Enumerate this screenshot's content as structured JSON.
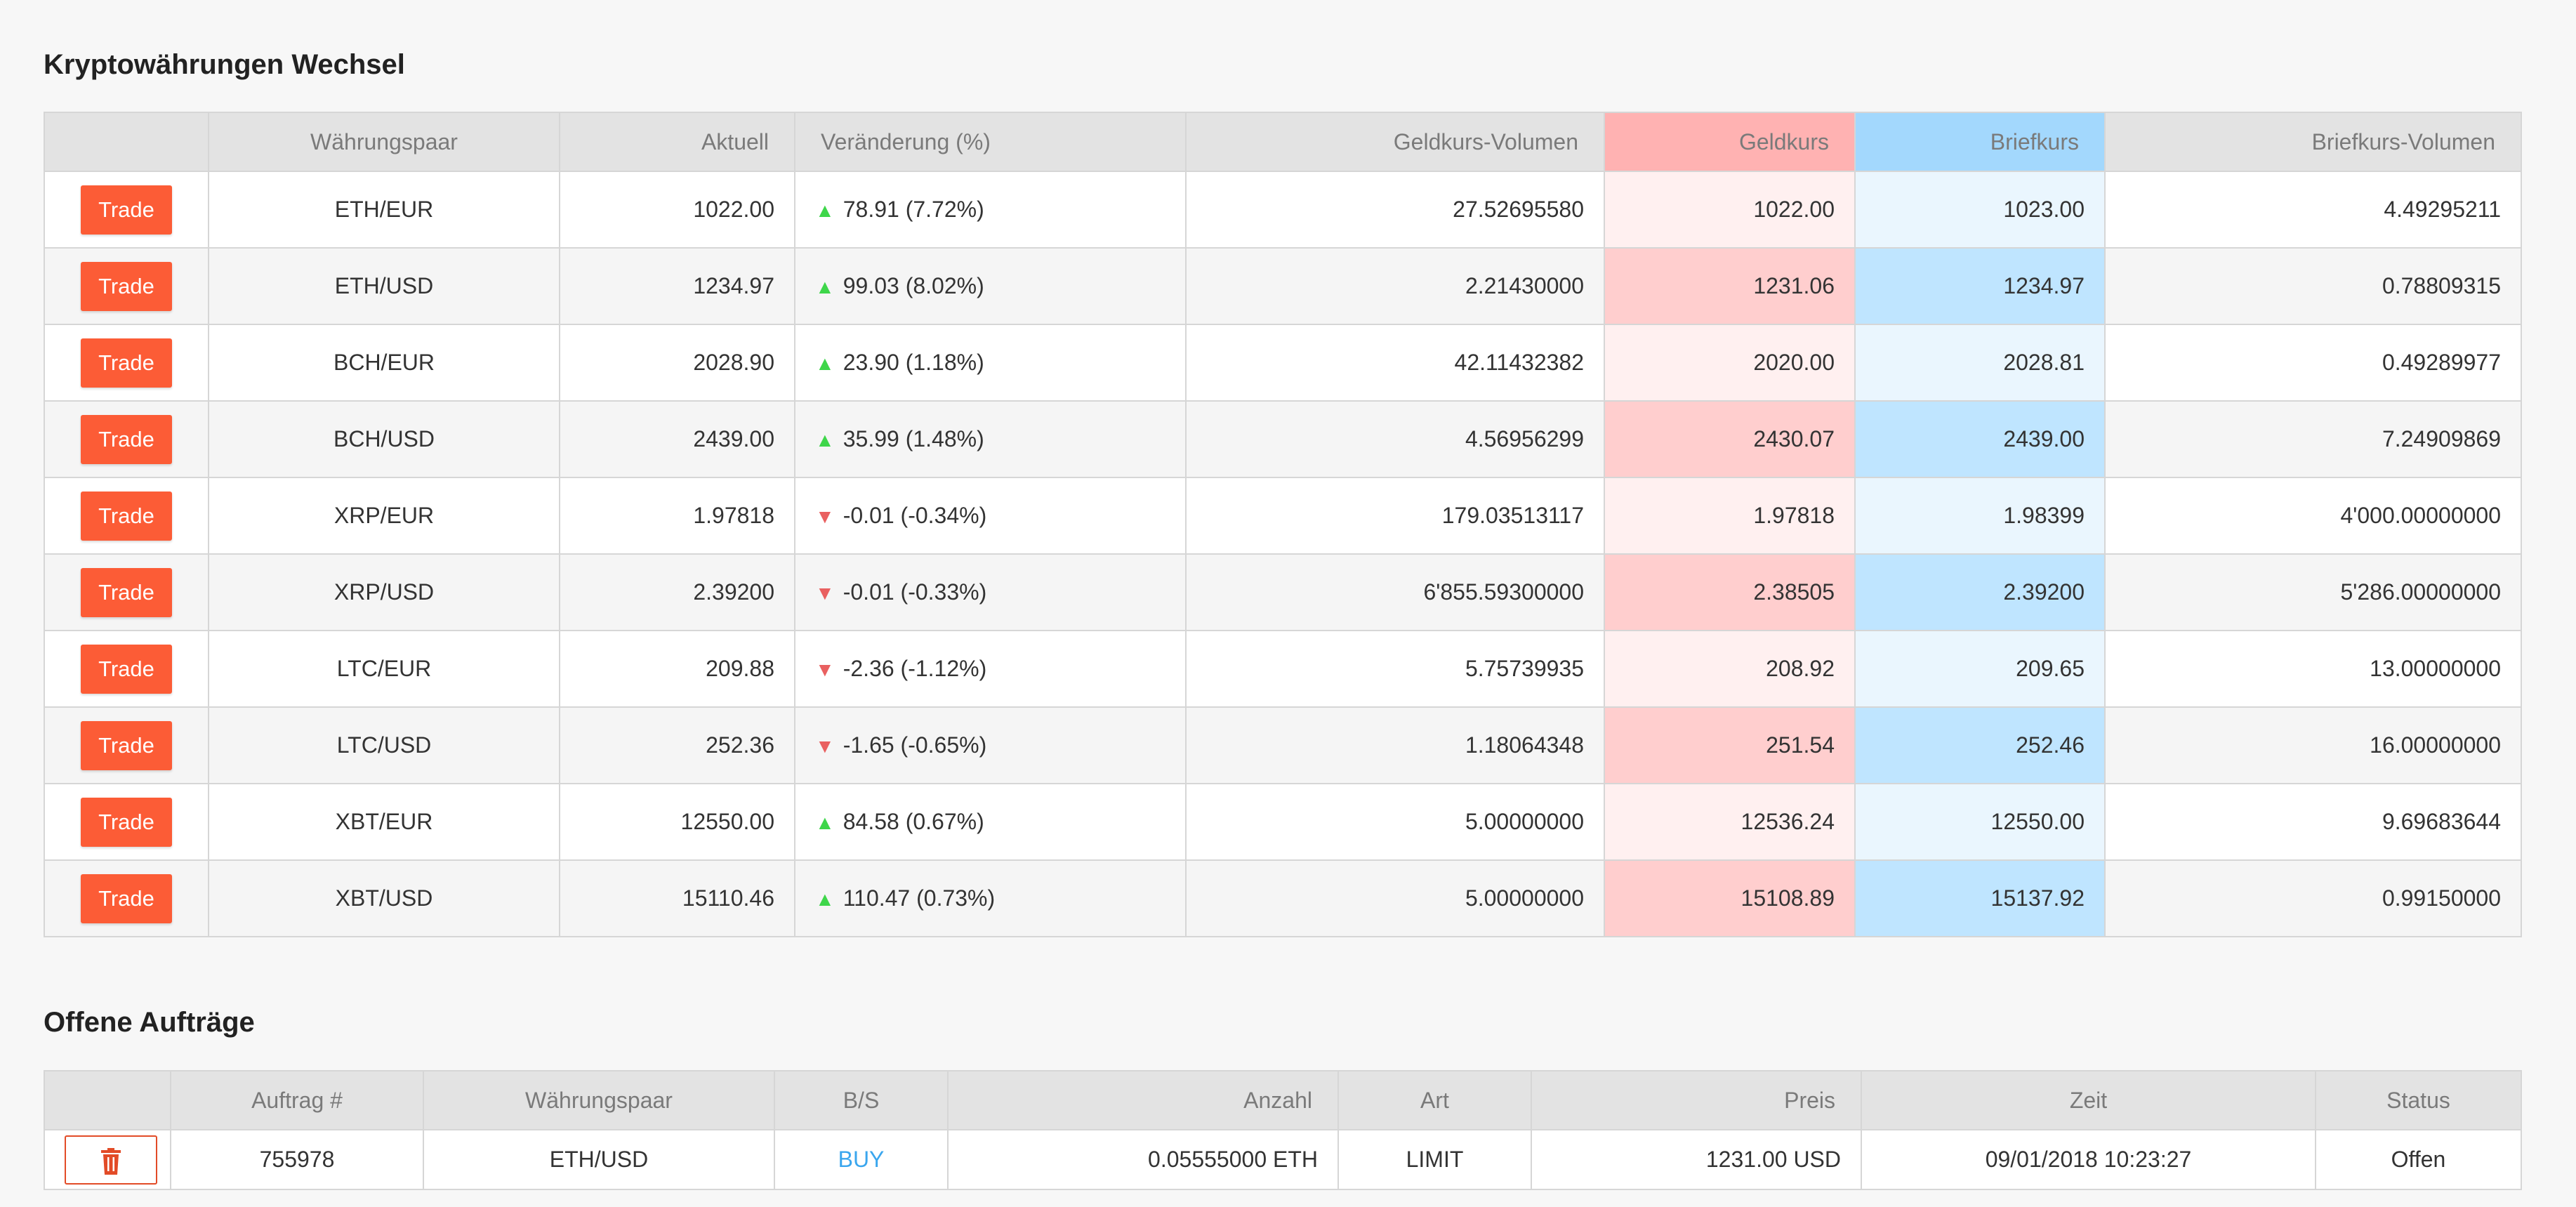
{
  "markets_title": "Kryptowährungen Wechsel",
  "orders_title": "Offene Aufträge",
  "markets_headers": {
    "pair": "Währungspaar",
    "current": "Aktuell",
    "change": "Veränderung (%)",
    "bid_volume": "Geldkurs-Volumen",
    "bid": "Geldkurs",
    "ask": "Briefkurs",
    "ask_volume": "Briefkurs-Volumen"
  },
  "trade_label": "Trade",
  "markets": [
    {
      "pair": "ETH/EUR",
      "current": "1022.00",
      "direction": "up",
      "change": "78.91 (7.72%)",
      "bid_volume": "27.52695580",
      "bid": "1022.00",
      "ask": "1023.00",
      "ask_volume": "4.49295211"
    },
    {
      "pair": "ETH/USD",
      "current": "1234.97",
      "direction": "up",
      "change": "99.03 (8.02%)",
      "bid_volume": "2.21430000",
      "bid": "1231.06",
      "ask": "1234.97",
      "ask_volume": "0.78809315"
    },
    {
      "pair": "BCH/EUR",
      "current": "2028.90",
      "direction": "up",
      "change": "23.90 (1.18%)",
      "bid_volume": "42.11432382",
      "bid": "2020.00",
      "ask": "2028.81",
      "ask_volume": "0.49289977"
    },
    {
      "pair": "BCH/USD",
      "current": "2439.00",
      "direction": "up",
      "change": "35.99 (1.48%)",
      "bid_volume": "4.56956299",
      "bid": "2430.07",
      "ask": "2439.00",
      "ask_volume": "7.24909869"
    },
    {
      "pair": "XRP/EUR",
      "current": "1.97818",
      "direction": "down",
      "change": "-0.01 (-0.34%)",
      "bid_volume": "179.03513117",
      "bid": "1.97818",
      "ask": "1.98399",
      "ask_volume": "4'000.00000000"
    },
    {
      "pair": "XRP/USD",
      "current": "2.39200",
      "direction": "down",
      "change": "-0.01 (-0.33%)",
      "bid_volume": "6'855.59300000",
      "bid": "2.38505",
      "ask": "2.39200",
      "ask_volume": "5'286.00000000"
    },
    {
      "pair": "LTC/EUR",
      "current": "209.88",
      "direction": "down",
      "change": "-2.36 (-1.12%)",
      "bid_volume": "5.75739935",
      "bid": "208.92",
      "ask": "209.65",
      "ask_volume": "13.00000000"
    },
    {
      "pair": "LTC/USD",
      "current": "252.36",
      "direction": "down",
      "change": "-1.65 (-0.65%)",
      "bid_volume": "1.18064348",
      "bid": "251.54",
      "ask": "252.46",
      "ask_volume": "16.00000000"
    },
    {
      "pair": "XBT/EUR",
      "current": "12550.00",
      "direction": "up",
      "change": "84.58 (0.67%)",
      "bid_volume": "5.00000000",
      "bid": "12536.24",
      "ask": "12550.00",
      "ask_volume": "9.69683644"
    },
    {
      "pair": "XBT/USD",
      "current": "15110.46",
      "direction": "up",
      "change": "110.47 (0.73%)",
      "bid_volume": "5.00000000",
      "bid": "15108.89",
      "ask": "15137.92",
      "ask_volume": "0.99150000"
    }
  ],
  "orders_headers": {
    "order_no": "Auftrag #",
    "pair": "Währungspaar",
    "side": "B/S",
    "amount": "Anzahl",
    "type": "Art",
    "price": "Preis",
    "time": "Zeit",
    "status": "Status"
  },
  "orders": [
    {
      "order_no": "755978",
      "pair": "ETH/USD",
      "side": "BUY",
      "amount": "0.05555000 ETH",
      "type": "LIMIT",
      "price": "1231.00 USD",
      "time": "09/01/2018 10:23:27",
      "status": "Offen"
    }
  ],
  "colors": {
    "accent": "#fc5c36",
    "bid_header": "#ffb2b2",
    "ask_header": "#a3d8fd",
    "up": "#3ed64a",
    "down": "#e96060",
    "buy": "#3aa6ee"
  },
  "icons": {
    "up": "▲",
    "down": "▼",
    "delete": "trash-icon"
  }
}
